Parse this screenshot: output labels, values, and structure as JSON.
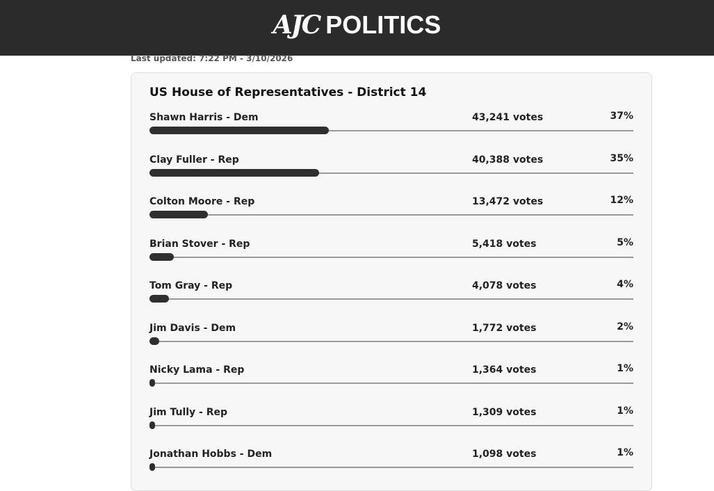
{
  "header": {
    "logo": "AJC",
    "section": "POLITICS"
  },
  "last_updated": "Last updated: 7:22 PM - 3/10/2026",
  "race": {
    "title": "US House of Representatives - District 14",
    "candidates": [
      {
        "name": "Shawn Harris - Dem",
        "votes": "43,241 votes",
        "percent": 37,
        "percent_label": "37%"
      },
      {
        "name": "Clay Fuller - Rep",
        "votes": "40,388 votes",
        "percent": 35,
        "percent_label": "35%"
      },
      {
        "name": "Colton Moore - Rep",
        "votes": "13,472 votes",
        "percent": 12,
        "percent_label": "12%"
      },
      {
        "name": "Brian Stover - Rep",
        "votes": "5,418 votes",
        "percent": 5,
        "percent_label": "5%"
      },
      {
        "name": "Tom Gray - Rep",
        "votes": "4,078 votes",
        "percent": 4,
        "percent_label": "4%"
      },
      {
        "name": "Jim Davis - Dem",
        "votes": "1,772 votes",
        "percent": 2,
        "percent_label": "2%"
      },
      {
        "name": "Nicky Lama - Rep",
        "votes": "1,364 votes",
        "percent": 1,
        "percent_label": "1%"
      },
      {
        "name": "Jim Tully - Rep",
        "votes": "1,309 votes",
        "percent": 1,
        "percent_label": "1%"
      },
      {
        "name": "Jonathan Hobbs - Dem",
        "votes": "1,098 votes",
        "percent": 1,
        "percent_label": "1%"
      }
    ]
  }
}
